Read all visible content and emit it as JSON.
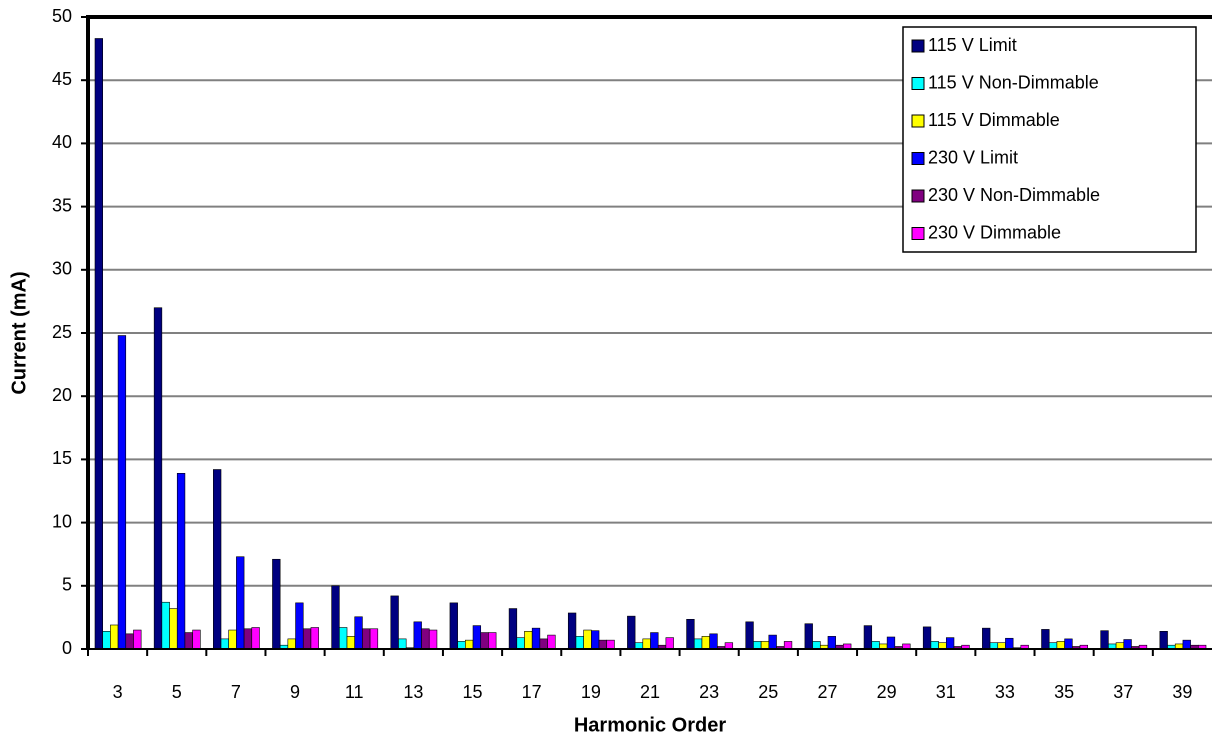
{
  "chart_data": {
    "type": "bar",
    "x_label": "Harmonic Order",
    "y_label": "Current (mA)",
    "categories": [
      "3",
      "5",
      "7",
      "9",
      "11",
      "13",
      "15",
      "17",
      "19",
      "21",
      "23",
      "25",
      "27",
      "29",
      "31",
      "33",
      "35",
      "37",
      "39"
    ],
    "series": [
      {
        "name": "115 V Limit",
        "color": "#000080",
        "values": [
          48.3,
          27.0,
          14.2,
          7.1,
          5.0,
          4.2,
          3.65,
          3.2,
          2.85,
          2.6,
          2.35,
          2.15,
          2.0,
          1.85,
          1.75,
          1.65,
          1.55,
          1.45,
          1.4
        ]
      },
      {
        "name": "115 V Non-Dimmable",
        "color": "#00ffff",
        "values": [
          1.4,
          3.7,
          0.8,
          0.3,
          1.7,
          0.8,
          0.6,
          0.9,
          1.0,
          0.5,
          0.8,
          0.6,
          0.6,
          0.6,
          0.6,
          0.5,
          0.5,
          0.4,
          0.3
        ]
      },
      {
        "name": "115 V Dimmable",
        "color": "#ffff00",
        "values": [
          1.9,
          3.2,
          1.5,
          0.8,
          1.0,
          0.1,
          0.7,
          1.4,
          1.5,
          0.8,
          1.0,
          0.6,
          0.3,
          0.4,
          0.5,
          0.5,
          0.6,
          0.5,
          0.4
        ]
      },
      {
        "name": "230 V Limit",
        "color": "#0000ff",
        "values": [
          24.8,
          13.9,
          7.3,
          3.65,
          2.55,
          2.15,
          1.85,
          1.65,
          1.45,
          1.3,
          1.2,
          1.1,
          1.0,
          0.95,
          0.9,
          0.85,
          0.8,
          0.75,
          0.7
        ]
      },
      {
        "name": "230 V Non-Dimmable",
        "color": "#800080",
        "values": [
          1.2,
          1.3,
          1.6,
          1.6,
          1.6,
          1.6,
          1.3,
          0.8,
          0.7,
          0.3,
          0.2,
          0.2,
          0.3,
          0.2,
          0.2,
          0.1,
          0.2,
          0.2,
          0.3
        ]
      },
      {
        "name": "230 V Dimmable",
        "color": "#ff00ff",
        "values": [
          1.5,
          1.5,
          1.7,
          1.7,
          1.6,
          1.5,
          1.3,
          1.1,
          0.7,
          0.9,
          0.5,
          0.6,
          0.4,
          0.4,
          0.3,
          0.3,
          0.3,
          0.3,
          0.3
        ]
      }
    ],
    "ylim": [
      0,
      50
    ],
    "yticks": [
      0,
      5,
      10,
      15,
      20,
      25,
      30,
      35,
      40,
      45,
      50
    ],
    "grid": true,
    "legend": "upper right"
  }
}
